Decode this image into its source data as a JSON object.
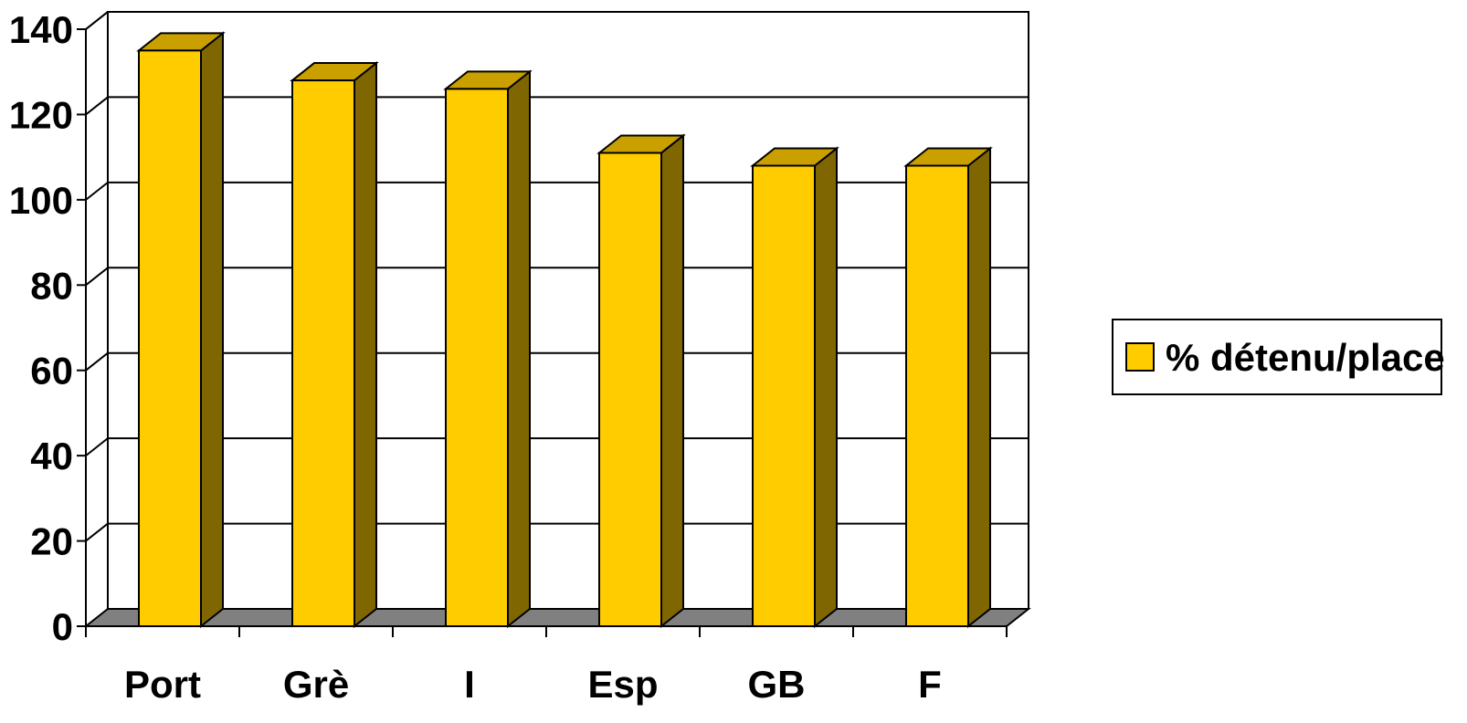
{
  "chart_data": {
    "type": "bar",
    "categories": [
      "Port",
      "Grè",
      "I",
      "Esp",
      "GB",
      "F"
    ],
    "series": [
      {
        "name": "% détenu/place",
        "values": [
          135,
          128,
          126,
          111,
          108,
          108
        ]
      }
    ],
    "ylim": [
      0,
      140
    ],
    "yticks": [
      "0",
      "20",
      "40",
      "60",
      "80",
      "100",
      "120",
      "140"
    ],
    "grid": true,
    "legend_position": "right",
    "colors": {
      "bar_front": "#ffcc00",
      "bar_top": "#c9a000",
      "bar_side": "#806600",
      "floor": "#808080"
    }
  }
}
